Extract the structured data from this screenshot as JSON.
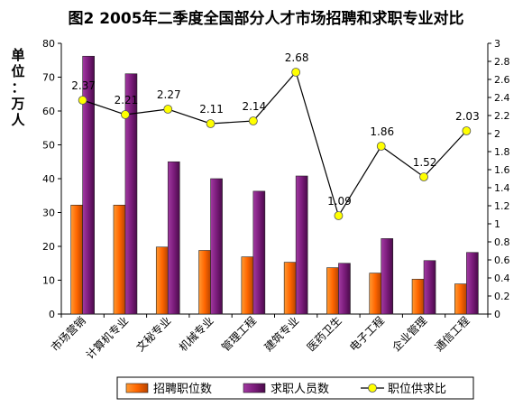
{
  "chart_data": {
    "type": "bar",
    "title": "图2 2005年二季度全国部分人才市场招聘和求职专业对比",
    "unit_label": "单位：万人",
    "categories": [
      "市场营销",
      "计算机专业",
      "文秘专业",
      "机械专业",
      "管理工程",
      "建筑专业",
      "医药卫生",
      "电子工程",
      "企业管理",
      "通信工程"
    ],
    "series": [
      {
        "name": "招聘职位数",
        "kind": "bar",
        "axis": "left",
        "color": "#ff6600",
        "values": [
          32.2,
          32.2,
          19.8,
          18.8,
          16.9,
          15.3,
          13.7,
          12.1,
          10.3,
          8.9
        ]
      },
      {
        "name": "求职人员数",
        "kind": "bar",
        "axis": "left",
        "color": "#7b1c7b",
        "values": [
          76.2,
          71.0,
          45.0,
          40.0,
          36.3,
          40.8,
          15.0,
          22.3,
          15.8,
          18.2
        ]
      },
      {
        "name": "职位供求比",
        "kind": "line",
        "axis": "right",
        "color": "#ffff00",
        "values": [
          2.37,
          2.21,
          2.27,
          2.11,
          2.14,
          2.68,
          1.09,
          1.86,
          1.52,
          2.03
        ],
        "labels": [
          "2.37",
          "2.21",
          "2.27",
          "2.11",
          "2.14",
          "2.68",
          "1.09",
          "1.86",
          "1.52",
          "2.03"
        ]
      }
    ],
    "y_left": {
      "min": 0,
      "max": 80,
      "step": 10,
      "ticks": [
        "0",
        "10",
        "20",
        "30",
        "40",
        "50",
        "60",
        "70",
        "80"
      ]
    },
    "y_right": {
      "min": 0,
      "max": 3,
      "step": 0.2,
      "ticks": [
        "0",
        "0.2",
        "0.4",
        "0.6",
        "0.8",
        "1",
        "1.2",
        "1.4",
        "1.6",
        "1.8",
        "2",
        "2.2",
        "2.4",
        "2.6",
        "2.8",
        "3"
      ]
    },
    "grid": false,
    "legend_position": "bottom"
  }
}
